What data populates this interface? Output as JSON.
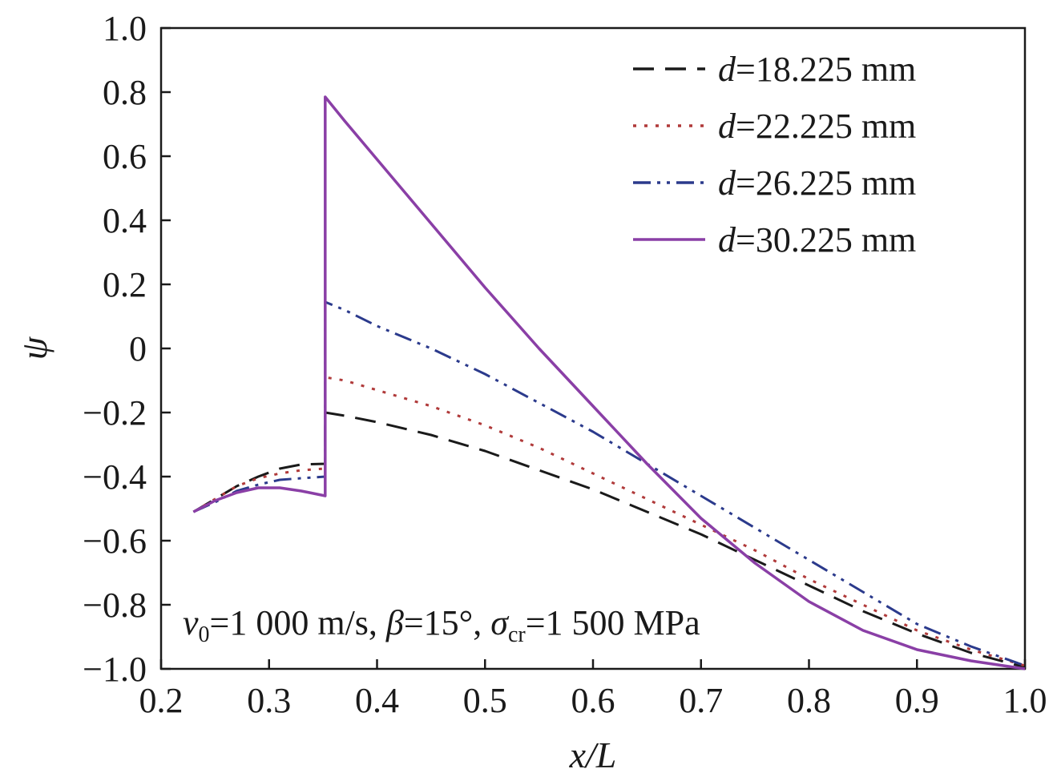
{
  "chart_data": {
    "type": "line",
    "xlabel": "x/L",
    "ylabel": "ψ",
    "xlim": [
      0.2,
      1.0
    ],
    "ylim": [
      -1.0,
      1.0
    ],
    "x_ticks": [
      "0.2",
      "0.3",
      "0.4",
      "0.5",
      "0.6",
      "0.7",
      "0.8",
      "0.9",
      "1.0"
    ],
    "y_ticks": [
      "1.0",
      "0.8",
      "0.6",
      "0.4",
      "0.2",
      "0",
      "−0.2",
      "−0.4",
      "−0.6",
      "−0.8",
      "−1.0"
    ],
    "grid": false,
    "legend_position": "top-right",
    "annotation": {
      "v_symbol": "v",
      "v_sub": "0",
      "v_value": "=1 000 m/s, ",
      "beta_symbol": "β",
      "beta_value": "=15°, ",
      "sigma_symbol": "σ",
      "sigma_sub": "cr",
      "sigma_value": "=1 500 MPa"
    },
    "series": [
      {
        "name_symbol": "d",
        "name_value": "=18.225 mm",
        "color": "#1a1a1a",
        "dash": "26,14",
        "x": [
          0.23,
          0.25,
          0.27,
          0.29,
          0.31,
          0.33,
          0.352,
          0.352,
          0.37,
          0.4,
          0.45,
          0.5,
          0.55,
          0.6,
          0.65,
          0.7,
          0.75,
          0.8,
          0.85,
          0.9,
          0.95,
          1.0
        ],
        "y": [
          -0.51,
          -0.47,
          -0.43,
          -0.4,
          -0.375,
          -0.362,
          -0.36,
          -0.2,
          -0.21,
          -0.23,
          -0.27,
          -0.32,
          -0.38,
          -0.44,
          -0.51,
          -0.58,
          -0.66,
          -0.74,
          -0.82,
          -0.89,
          -0.95,
          -0.995
        ]
      },
      {
        "name_symbol": "d",
        "name_value": "=22.225 mm",
        "color": "#b03a3a",
        "dash": "4,10",
        "x": [
          0.23,
          0.25,
          0.27,
          0.29,
          0.31,
          0.33,
          0.352,
          0.352,
          0.37,
          0.4,
          0.45,
          0.5,
          0.55,
          0.6,
          0.65,
          0.7,
          0.75,
          0.8,
          0.85,
          0.9,
          0.95,
          1.0
        ],
        "y": [
          -0.51,
          -0.47,
          -0.43,
          -0.405,
          -0.39,
          -0.38,
          -0.375,
          -0.09,
          -0.1,
          -0.13,
          -0.18,
          -0.24,
          -0.31,
          -0.39,
          -0.47,
          -0.55,
          -0.63,
          -0.72,
          -0.8,
          -0.88,
          -0.94,
          -0.99
        ]
      },
      {
        "name_symbol": "d",
        "name_value": "=26.225 mm",
        "color": "#2b3a8c",
        "dash": "22,8,4,8,4,8",
        "x": [
          0.23,
          0.25,
          0.27,
          0.29,
          0.31,
          0.33,
          0.352,
          0.352,
          0.37,
          0.4,
          0.45,
          0.5,
          0.55,
          0.6,
          0.65,
          0.7,
          0.75,
          0.8,
          0.85,
          0.9,
          0.95,
          1.0
        ],
        "y": [
          -0.51,
          -0.48,
          -0.445,
          -0.425,
          -0.41,
          -0.405,
          -0.4,
          0.145,
          0.12,
          0.07,
          0.0,
          -0.08,
          -0.17,
          -0.26,
          -0.36,
          -0.46,
          -0.56,
          -0.66,
          -0.76,
          -0.86,
          -0.93,
          -0.99
        ]
      },
      {
        "name_symbol": "d",
        "name_value": "=30.225 mm",
        "color": "#8a3fa6",
        "dash": "",
        "x": [
          0.23,
          0.25,
          0.27,
          0.29,
          0.31,
          0.33,
          0.352,
          0.352,
          0.37,
          0.4,
          0.45,
          0.5,
          0.55,
          0.6,
          0.65,
          0.7,
          0.75,
          0.8,
          0.85,
          0.9,
          0.95,
          1.0
        ],
        "y": [
          -0.51,
          -0.475,
          -0.45,
          -0.435,
          -0.435,
          -0.445,
          -0.46,
          0.785,
          0.71,
          0.59,
          0.39,
          0.19,
          0.0,
          -0.18,
          -0.36,
          -0.53,
          -0.67,
          -0.79,
          -0.88,
          -0.94,
          -0.975,
          -1.0
        ]
      }
    ]
  }
}
